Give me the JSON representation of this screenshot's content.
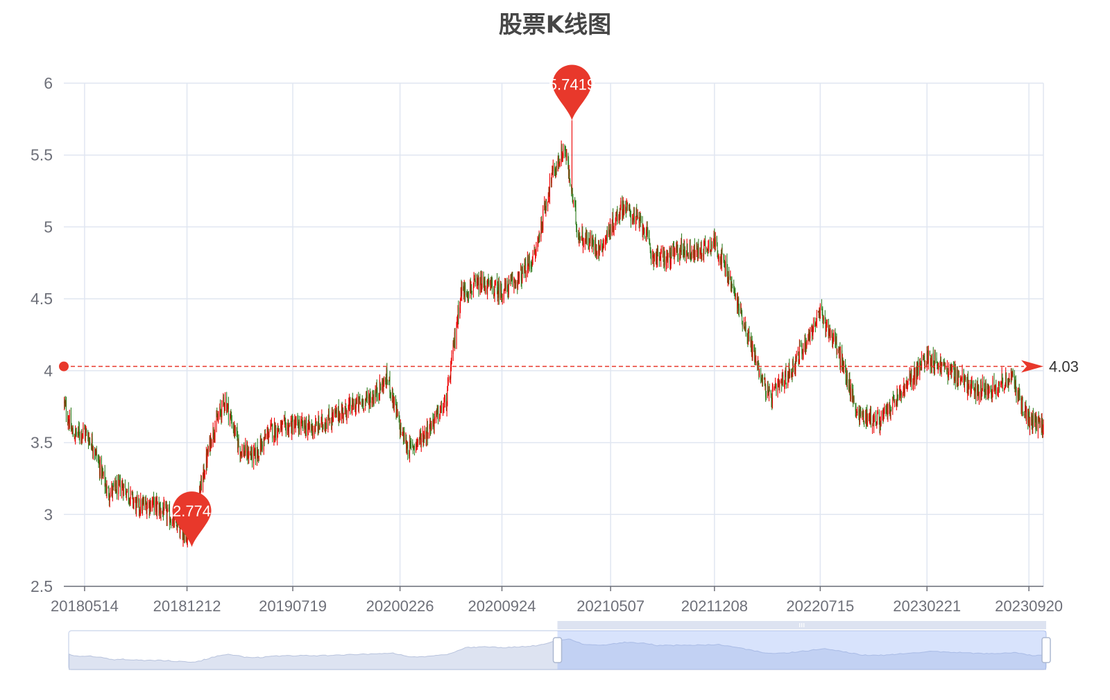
{
  "chart_data": {
    "type": "candlestick",
    "title": "股票K线图",
    "ylim": [
      2.5,
      6
    ],
    "y_ticks": [
      "2.5",
      "3",
      "3.5",
      "4",
      "4.5",
      "5",
      "5.5",
      "6"
    ],
    "x_ticks": [
      "20180514",
      "20181212",
      "20190719",
      "20200226",
      "20200924",
      "20210507",
      "20211208",
      "20220715",
      "20230221",
      "20230920"
    ],
    "x_range": [
      "20180401",
      "20231020"
    ],
    "price_anchors": [
      [
        "20180401",
        3.78
      ],
      [
        "20180420",
        3.55
      ],
      [
        "20180514",
        3.58
      ],
      [
        "20180601",
        3.48
      ],
      [
        "20180701",
        3.15
      ],
      [
        "20180801",
        3.2
      ],
      [
        "20180901",
        3.05
      ],
      [
        "20181001",
        3.08
      ],
      [
        "20181101",
        3.0
      ],
      [
        "20181212",
        2.85
      ],
      [
        "20190101",
        3.05
      ],
      [
        "20190201",
        3.55
      ],
      [
        "20190301",
        3.8
      ],
      [
        "20190401",
        3.45
      ],
      [
        "20190501",
        3.4
      ],
      [
        "20190601",
        3.58
      ],
      [
        "20190719",
        3.62
      ],
      [
        "20190901",
        3.6
      ],
      [
        "20191101",
        3.72
      ],
      [
        "20200101",
        3.82
      ],
      [
        "20200201",
        3.95
      ],
      [
        "20200226",
        3.6
      ],
      [
        "20200315",
        3.45
      ],
      [
        "20200415",
        3.55
      ],
      [
        "20200601",
        3.78
      ],
      [
        "20200701",
        4.55
      ],
      [
        "20200815",
        4.6
      ],
      [
        "20200924",
        4.55
      ],
      [
        "20201101",
        4.65
      ],
      [
        "20201201",
        4.8
      ],
      [
        "20210105",
        5.35
      ],
      [
        "20210201",
        5.55
      ],
      [
        "20210301",
        4.95
      ],
      [
        "20210415",
        4.85
      ],
      [
        "20210601",
        5.15
      ],
      [
        "20210715",
        5.0
      ],
      [
        "20210801",
        4.8
      ],
      [
        "20210901",
        4.78
      ],
      [
        "20211001",
        4.85
      ],
      [
        "20211101",
        4.82
      ],
      [
        "20211208",
        4.9
      ],
      [
        "20220101",
        4.7
      ],
      [
        "20220201",
        4.4
      ],
      [
        "20220301",
        4.1
      ],
      [
        "20220401",
        3.8
      ],
      [
        "20220515",
        4.0
      ],
      [
        "20220715",
        4.4
      ],
      [
        "20220815",
        4.2
      ],
      [
        "20221001",
        3.7
      ],
      [
        "20221115",
        3.65
      ],
      [
        "20230101",
        3.85
      ],
      [
        "20230221",
        4.1
      ],
      [
        "20230315",
        4.05
      ],
      [
        "20230501",
        3.95
      ],
      [
        "20230601",
        3.85
      ],
      [
        "20230715",
        3.9
      ],
      [
        "20230815",
        3.95
      ],
      [
        "20230920",
        3.65
      ],
      [
        "20231020",
        3.62
      ]
    ],
    "max_point": {
      "label": "5.7419",
      "value": 5.7419,
      "date": "20210216"
    },
    "min_point": {
      "label": "2.774",
      "value": 2.774,
      "date": "20181222"
    },
    "reference_line": {
      "label": "4.03",
      "value": 4.03
    },
    "colors": {
      "up": "#ec0000",
      "down": "#2f7d1f",
      "marker": "#e8382b",
      "grid": "#e0e6f1",
      "axis": "#6e7079"
    },
    "zoom": {
      "start_fraction": 0.5,
      "end_fraction": 1.0
    },
    "grid": true
  }
}
